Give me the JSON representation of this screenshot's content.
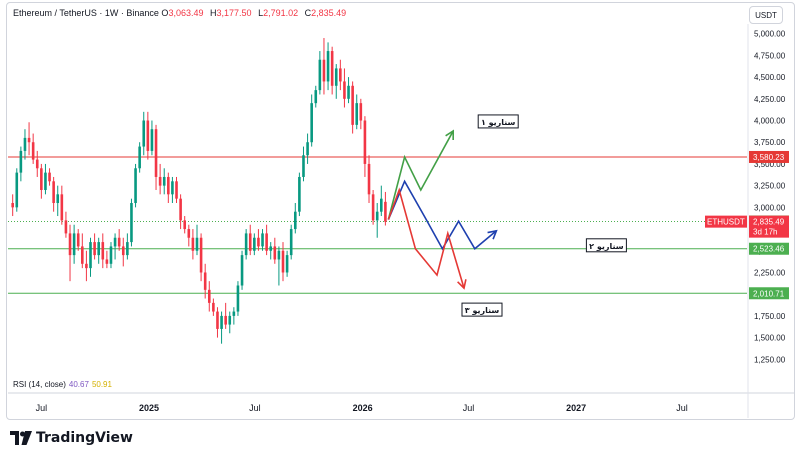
{
  "header": {
    "symbol": "Ethereum / TetherUS · 1W · Binance",
    "o_label": "O",
    "o_value": "3,063.49",
    "h_label": "H",
    "h_value": "3,177.50",
    "l_label": "L",
    "l_value": "2,791.02",
    "c_label": "C",
    "c_value": "2,835.49"
  },
  "currency_button": "USDT",
  "rsi": {
    "label": "RSI (14, close)",
    "value1": "40.67",
    "value2": "50.91"
  },
  "brand": "TradingView",
  "colors": {
    "up": "#089981",
    "down": "#f23645",
    "green_line": "#4caf50",
    "red_line": "#e53935",
    "blue_path": "#1e40af"
  },
  "chart_data": {
    "type": "candlestick",
    "y_axis": {
      "ylim": [
        1150,
        5100
      ],
      "ticks": [
        "5,000.00",
        "4,750.00",
        "4,500.00",
        "4,250.00",
        "4,000.00",
        "3,750.00",
        "3,500.00",
        "3,250.00",
        "3,000.00",
        "2,750.00",
        "2,500.00",
        "2,250.00",
        "2,000.00",
        "1,750.00",
        "1,500.00",
        "1,250.00"
      ],
      "tick_values": [
        5000,
        4750,
        4500,
        4250,
        4000,
        3750,
        3500,
        3250,
        3000,
        2750,
        2500,
        2250,
        2000,
        1750,
        1500,
        1250
      ]
    },
    "x_axis": {
      "labels": [
        "Jul",
        "2025",
        "Jul",
        "2026",
        "Jul",
        "2027",
        "Jul"
      ],
      "dates": [
        "2024-07-01",
        "2025-01-01",
        "2025-07-01",
        "2026-01-01",
        "2026-07-01",
        "2027-01-01",
        "2027-07-01"
      ],
      "bold": [
        false,
        true,
        false,
        true,
        false,
        true,
        false
      ]
    },
    "visible_date_range": [
      "2024-05-05",
      "2027-10-20"
    ],
    "candles": [
      {
        "o": 3050,
        "h": 3150,
        "l": 2900,
        "c": 3000
      },
      {
        "o": 3000,
        "h": 3450,
        "l": 2950,
        "c": 3400
      },
      {
        "o": 3400,
        "h": 3700,
        "l": 3300,
        "c": 3650
      },
      {
        "o": 3650,
        "h": 3900,
        "l": 3550,
        "c": 3800
      },
      {
        "o": 3800,
        "h": 3980,
        "l": 3600,
        "c": 3750
      },
      {
        "o": 3750,
        "h": 3850,
        "l": 3500,
        "c": 3550
      },
      {
        "o": 3550,
        "h": 3650,
        "l": 3350,
        "c": 3450
      },
      {
        "o": 3450,
        "h": 3500,
        "l": 3100,
        "c": 3200
      },
      {
        "o": 3200,
        "h": 3500,
        "l": 3150,
        "c": 3400
      },
      {
        "o": 3400,
        "h": 3450,
        "l": 3250,
        "c": 3300
      },
      {
        "o": 3300,
        "h": 3350,
        "l": 2950,
        "c": 3050
      },
      {
        "o": 3050,
        "h": 3250,
        "l": 2900,
        "c": 3150
      },
      {
        "o": 3150,
        "h": 3250,
        "l": 2800,
        "c": 2850
      },
      {
        "o": 2850,
        "h": 2950,
        "l": 2650,
        "c": 2700
      },
      {
        "o": 2700,
        "h": 2800,
        "l": 2150,
        "c": 2450
      },
      {
        "o": 2450,
        "h": 2800,
        "l": 2350,
        "c": 2700
      },
      {
        "o": 2700,
        "h": 2750,
        "l": 2500,
        "c": 2550
      },
      {
        "o": 2550,
        "h": 2700,
        "l": 2300,
        "c": 2350
      },
      {
        "o": 2350,
        "h": 2500,
        "l": 2150,
        "c": 2300
      },
      {
        "o": 2300,
        "h": 2650,
        "l": 2200,
        "c": 2600
      },
      {
        "o": 2600,
        "h": 2700,
        "l": 2400,
        "c": 2450
      },
      {
        "o": 2450,
        "h": 2650,
        "l": 2350,
        "c": 2600
      },
      {
        "o": 2600,
        "h": 2700,
        "l": 2300,
        "c": 2400
      },
      {
        "o": 2400,
        "h": 2500,
        "l": 2300,
        "c": 2350
      },
      {
        "o": 2350,
        "h": 2600,
        "l": 2300,
        "c": 2550
      },
      {
        "o": 2550,
        "h": 2700,
        "l": 2400,
        "c": 2650
      },
      {
        "o": 2650,
        "h": 2750,
        "l": 2500,
        "c": 2550
      },
      {
        "o": 2550,
        "h": 2650,
        "l": 2320,
        "c": 2450
      },
      {
        "o": 2450,
        "h": 2700,
        "l": 2400,
        "c": 2600
      },
      {
        "o": 2600,
        "h": 3100,
        "l": 2550,
        "c": 3050
      },
      {
        "o": 3050,
        "h": 3500,
        "l": 3000,
        "c": 3450
      },
      {
        "o": 3450,
        "h": 3750,
        "l": 3400,
        "c": 3700
      },
      {
        "o": 3700,
        "h": 4100,
        "l": 3600,
        "c": 4000
      },
      {
        "o": 4000,
        "h": 4100,
        "l": 3550,
        "c": 3650
      },
      {
        "o": 3650,
        "h": 4000,
        "l": 3600,
        "c": 3900
      },
      {
        "o": 3900,
        "h": 3950,
        "l": 3200,
        "c": 3350
      },
      {
        "o": 3350,
        "h": 3500,
        "l": 3150,
        "c": 3250
      },
      {
        "o": 3250,
        "h": 3450,
        "l": 3150,
        "c": 3350
      },
      {
        "o": 3350,
        "h": 3400,
        "l": 3050,
        "c": 3150
      },
      {
        "o": 3150,
        "h": 3350,
        "l": 3050,
        "c": 3300
      },
      {
        "o": 3300,
        "h": 3350,
        "l": 3050,
        "c": 3100
      },
      {
        "o": 3100,
        "h": 3150,
        "l": 2750,
        "c": 2850
      },
      {
        "o": 2850,
        "h": 2900,
        "l": 2700,
        "c": 2750
      },
      {
        "o": 2750,
        "h": 2800,
        "l": 2550,
        "c": 2650
      },
      {
        "o": 2650,
        "h": 2750,
        "l": 2400,
        "c": 2500
      },
      {
        "o": 2500,
        "h": 2800,
        "l": 2450,
        "c": 2650
      },
      {
        "o": 2650,
        "h": 2700,
        "l": 2150,
        "c": 2250
      },
      {
        "o": 2250,
        "h": 2350,
        "l": 1950,
        "c": 2050
      },
      {
        "o": 2050,
        "h": 2150,
        "l": 1800,
        "c": 1900
      },
      {
        "o": 1900,
        "h": 1950,
        "l": 1750,
        "c": 1800
      },
      {
        "o": 1800,
        "h": 1850,
        "l": 1500,
        "c": 1600
      },
      {
        "o": 1600,
        "h": 1800,
        "l": 1430,
        "c": 1750
      },
      {
        "o": 1750,
        "h": 1900,
        "l": 1600,
        "c": 1650
      },
      {
        "o": 1650,
        "h": 1800,
        "l": 1550,
        "c": 1750
      },
      {
        "o": 1750,
        "h": 1850,
        "l": 1650,
        "c": 1800
      },
      {
        "o": 1800,
        "h": 2150,
        "l": 1750,
        "c": 2100
      },
      {
        "o": 2100,
        "h": 2500,
        "l": 2050,
        "c": 2450
      },
      {
        "o": 2450,
        "h": 2750,
        "l": 2400,
        "c": 2700
      },
      {
        "o": 2700,
        "h": 2800,
        "l": 2450,
        "c": 2500
      },
      {
        "o": 2500,
        "h": 2700,
        "l": 2450,
        "c": 2650
      },
      {
        "o": 2650,
        "h": 2750,
        "l": 2500,
        "c": 2550
      },
      {
        "o": 2550,
        "h": 2750,
        "l": 2500,
        "c": 2700
      },
      {
        "o": 2700,
        "h": 2800,
        "l": 2450,
        "c": 2500
      },
      {
        "o": 2500,
        "h": 2600,
        "l": 2400,
        "c": 2550
      },
      {
        "o": 2550,
        "h": 2650,
        "l": 2350,
        "c": 2400
      },
      {
        "o": 2400,
        "h": 2550,
        "l": 2100,
        "c": 2500
      },
      {
        "o": 2500,
        "h": 2600,
        "l": 2150,
        "c": 2250
      },
      {
        "o": 2250,
        "h": 2500,
        "l": 2200,
        "c": 2450
      },
      {
        "o": 2450,
        "h": 2800,
        "l": 2400,
        "c": 2750
      },
      {
        "o": 2750,
        "h": 3050,
        "l": 2700,
        "c": 2950
      },
      {
        "o": 2950,
        "h": 3400,
        "l": 2900,
        "c": 3350
      },
      {
        "o": 3350,
        "h": 3700,
        "l": 3300,
        "c": 3600
      },
      {
        "o": 3600,
        "h": 3850,
        "l": 3500,
        "c": 3750
      },
      {
        "o": 3750,
        "h": 4300,
        "l": 3700,
        "c": 4200
      },
      {
        "o": 4200,
        "h": 4400,
        "l": 4150,
        "c": 4350
      },
      {
        "o": 4350,
        "h": 4800,
        "l": 4300,
        "c": 4700
      },
      {
        "o": 4700,
        "h": 4950,
        "l": 4300,
        "c": 4450
      },
      {
        "o": 4450,
        "h": 4900,
        "l": 4350,
        "c": 4800
      },
      {
        "o": 4800,
        "h": 4850,
        "l": 4300,
        "c": 4400
      },
      {
        "o": 4400,
        "h": 4650,
        "l": 4250,
        "c": 4600
      },
      {
        "o": 4600,
        "h": 4700,
        "l": 4350,
        "c": 4450
      },
      {
        "o": 4450,
        "h": 4600,
        "l": 4150,
        "c": 4250
      },
      {
        "o": 4250,
        "h": 4500,
        "l": 4200,
        "c": 4400
      },
      {
        "o": 4400,
        "h": 4450,
        "l": 3850,
        "c": 3950
      },
      {
        "o": 3950,
        "h": 4300,
        "l": 3900,
        "c": 4200
      },
      {
        "o": 4200,
        "h": 4250,
        "l": 3900,
        "c": 4000
      },
      {
        "o": 4000,
        "h": 4050,
        "l": 3350,
        "c": 3500
      },
      {
        "o": 3500,
        "h": 3600,
        "l": 3050,
        "c": 3150
      },
      {
        "o": 3150,
        "h": 3200,
        "l": 2800,
        "c": 2850
      },
      {
        "o": 2850,
        "h": 3050,
        "l": 2650,
        "c": 2950
      },
      {
        "o": 2950,
        "h": 3250,
        "l": 2900,
        "c": 3100
      },
      {
        "o": 3063.49,
        "h": 3177.5,
        "l": 2791.02,
        "c": 2835.49
      }
    ],
    "horizontal_levels": [
      {
        "value": 3580.23,
        "label": "3,580.23",
        "color": "#e53935"
      },
      {
        "value": 2837.39,
        "label": "2,837.39",
        "color": "#4caf50",
        "dotted": true
      },
      {
        "value": 2523.46,
        "label": "2,523.46",
        "color": "#4caf50"
      },
      {
        "value": 2010.71,
        "label": "2,010.71",
        "color": "#4caf50"
      }
    ],
    "price_tag": {
      "symbol": "ETHUSDT",
      "price": "2,835.49",
      "countdown": "3d 17h"
    },
    "scenarios": [
      {
        "label": "سناریو ۱",
        "color": "#43a047",
        "points": [
          [
            0,
            2860
          ],
          [
            3,
            3580
          ],
          [
            6,
            3200
          ],
          [
            12,
            3880
          ]
        ]
      },
      {
        "label": "سناریو ۲",
        "color": "#1e40af",
        "points": [
          [
            0,
            2860
          ],
          [
            3,
            3300
          ],
          [
            7,
            2860
          ],
          [
            10,
            2523
          ],
          [
            13,
            2840
          ],
          [
            16,
            2523
          ],
          [
            20,
            2730
          ]
        ]
      },
      {
        "label": "سناریو ۳",
        "color": "#e53935",
        "points": [
          [
            0,
            2860
          ],
          [
            2,
            3200
          ],
          [
            5,
            2523
          ],
          [
            9,
            2220
          ],
          [
            11,
            2700
          ],
          [
            14,
            2070
          ]
        ]
      }
    ],
    "scenario_labels": [
      {
        "text": "سناریو ۱",
        "scenario": 0
      },
      {
        "text": "سناریو ۲",
        "scenario": 1
      },
      {
        "text": "سناریو ۳",
        "scenario": 2
      }
    ]
  }
}
